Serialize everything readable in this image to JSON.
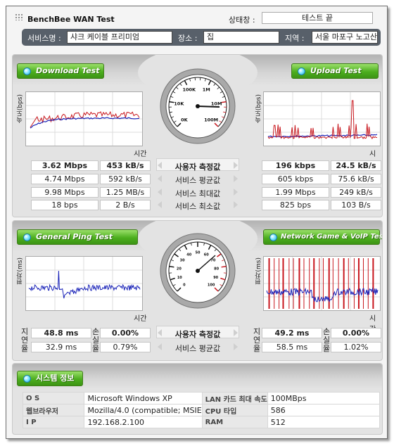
{
  "app": {
    "title": "BenchBee WAN Test",
    "status_label": "상태창 :",
    "status_value": "테스트 끝"
  },
  "info": {
    "service_label": "서비스명 :",
    "service_value": "샤크 케이블 프리미엄",
    "place_label": "장소 :",
    "place_value": "집",
    "region_label": "지역 :",
    "region_value": "서울 마포구 노고산동"
  },
  "speed": {
    "download_button": "Download Test",
    "upload_button": "Upload Test",
    "y_label": "속도(bps)",
    "x_label": "시간",
    "rows": [
      {
        "label": "사용자 측정값",
        "dl_bps": "3.62 Mbps",
        "dl_bytes": "453 kB/s",
        "ul_bps": "196 kbps",
        "ul_bytes": "24.5 kB/s"
      },
      {
        "label": "서비스 평균값",
        "dl_bps": "4.74 Mbps",
        "dl_bytes": "592 kB/s",
        "ul_bps": "605 kbps",
        "ul_bytes": "75.6 kB/s"
      },
      {
        "label": "서비스 최대값",
        "dl_bps": "9.98 Mbps",
        "dl_bytes": "1.25 MB/s",
        "ul_bps": "1.99 Mbps",
        "ul_bytes": "249 kB/s"
      },
      {
        "label": "서비스 최소값",
        "dl_bps": "18 bps",
        "dl_bytes": "2 B/s",
        "ul_bps": "825 bps",
        "ul_bytes": "103 B/s"
      }
    ],
    "gauge": {
      "ticks": [
        "0K",
        "10K",
        "100K",
        "1M",
        "10M",
        "100M"
      ],
      "needle_value": "3.62 Mbps"
    }
  },
  "ping": {
    "ping_button": "General Ping Test",
    "game_button": "Network Game & VoIP Test",
    "y_label": "편차(ms)",
    "x_label": "시간",
    "delay_label": "지연율",
    "loss_label": "손실율",
    "rows": [
      {
        "label": "사용자 측정값",
        "ping_delay": "48.8 ms",
        "ping_loss": "0.00%",
        "game_delay": "49.2 ms",
        "game_loss": "0.00%"
      },
      {
        "label": "서비스 평균값",
        "ping_delay": "32.9 ms",
        "ping_loss": "0.79%",
        "game_delay": "58.5 ms",
        "game_loss": "1.02%"
      }
    ],
    "gauge": {
      "ticks": [
        "0",
        "10",
        "20",
        "30",
        "40",
        "50",
        "60",
        "70",
        "80",
        "90",
        "100"
      ],
      "needle_value": "48.8 ms"
    }
  },
  "system": {
    "title": "시스템 정보",
    "rows": [
      {
        "k1": "O S",
        "v1": "Microsoft Windows XP",
        "k2": "LAN 카드 최대 속도",
        "v2": "100MBps"
      },
      {
        "k1": "웹브라우저",
        "v1": "Mozilla/4.0 (compatible; MSIE",
        "k2": "CPU 타입",
        "v2": "586"
      },
      {
        "k1": "I P",
        "v1": "192.168.2.100",
        "k2": "RAM",
        "v2": "512"
      }
    ]
  },
  "colors": {
    "series_red": "#c8161d",
    "series_blue": "#1a23b8",
    "button_green": "#4cae1e",
    "info_bar": "#58606a"
  }
}
